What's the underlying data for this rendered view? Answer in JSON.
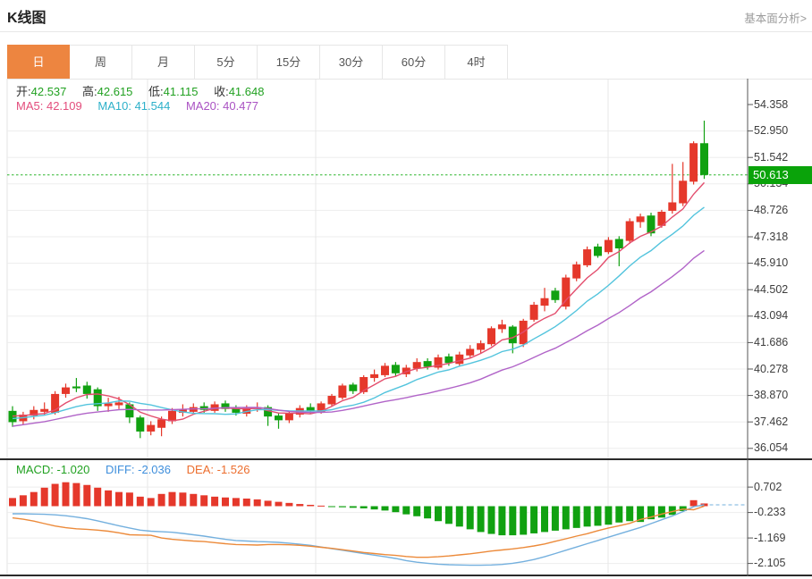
{
  "page": {
    "title": "K线图",
    "link": "基本面分析>"
  },
  "tabs": {
    "items": [
      "日",
      "周",
      "月",
      "5分",
      "15分",
      "30分",
      "60分",
      "4时"
    ],
    "selected": "日"
  },
  "quote_header": {
    "ohlc": [
      {
        "label": "开:",
        "value": "42.537"
      },
      {
        "label": "高:",
        "value": "42.615"
      },
      {
        "label": "低:",
        "value": "41.115"
      },
      {
        "label": "收:",
        "value": "41.648"
      }
    ],
    "mas": [
      {
        "label": "MA5:",
        "value": "42.109"
      },
      {
        "label": "MA10:",
        "value": "41.544"
      },
      {
        "label": "MA20:",
        "value": "40.477"
      }
    ]
  },
  "macd_header": [
    {
      "label": "MACD:",
      "value": "-1.020"
    },
    {
      "label": "DIFF:",
      "value": "-2.036"
    },
    {
      "label": "DEA:",
      "value": "-1.526"
    }
  ],
  "price_tag": {
    "value": "50.613"
  },
  "colors": {
    "up": "#e5382b",
    "down": "#11a111",
    "accent": "#ed8540",
    "ma5": "#e34d6d",
    "ma10": "#53c4dd",
    "ma20": "#b164c8",
    "diff_line": "#74b0de",
    "dea_line": "#ec8a3a",
    "price_line": "#2db52d",
    "tag_bg": "#0aa30a",
    "grid": "#ededed",
    "vgrid": "#e7e7e7",
    "axis": "#555",
    "dark_border": "#2b2b2b"
  },
  "chart_data": {
    "type": "candlestick+macd",
    "title": "K线图 daily candlestick with MACD",
    "main": {
      "y_axis_labels": [
        "54.358",
        "52.950",
        "51.542",
        "50.134",
        "48.726",
        "47.318",
        "45.910",
        "44.502",
        "43.094",
        "41.686",
        "40.278",
        "38.870",
        "37.462",
        "36.054"
      ],
      "ylim": [
        36.054,
        54.358
      ],
      "current_price": 50.613,
      "ma_windows": [
        5,
        10,
        20
      ],
      "vgrid_x": [
        165,
        353,
        680
      ],
      "candles_ohlc": [
        [
          38.05,
          38.3,
          37.2,
          37.45
        ],
        [
          37.5,
          38.0,
          37.3,
          37.85
        ],
        [
          37.8,
          38.3,
          37.6,
          38.1
        ],
        [
          38.0,
          38.5,
          37.85,
          38.15
        ],
        [
          37.95,
          39.1,
          37.85,
          38.95
        ],
        [
          38.95,
          39.5,
          38.75,
          39.3
        ],
        [
          39.35,
          39.8,
          39.05,
          39.25
        ],
        [
          39.4,
          39.6,
          38.7,
          38.95
        ],
        [
          39.2,
          39.3,
          38.05,
          38.3
        ],
        [
          38.3,
          38.75,
          38.0,
          38.45
        ],
        [
          38.35,
          38.8,
          38.15,
          38.5
        ],
        [
          38.4,
          38.5,
          37.4,
          37.7
        ],
        [
          37.7,
          37.8,
          36.6,
          36.95
        ],
        [
          36.95,
          37.5,
          36.75,
          37.3
        ],
        [
          37.15,
          37.75,
          36.7,
          37.6
        ],
        [
          37.5,
          38.2,
          37.35,
          38.05
        ],
        [
          37.95,
          38.4,
          37.75,
          38.15
        ],
        [
          38.0,
          38.45,
          37.9,
          38.25
        ],
        [
          38.3,
          38.5,
          37.95,
          38.1
        ],
        [
          38.05,
          38.55,
          37.95,
          38.4
        ],
        [
          38.45,
          38.6,
          38.0,
          38.15
        ],
        [
          38.2,
          38.35,
          37.8,
          37.95
        ],
        [
          37.9,
          38.35,
          37.75,
          38.2
        ],
        [
          38.15,
          38.5,
          38.0,
          38.25
        ],
        [
          38.25,
          38.35,
          37.25,
          37.75
        ],
        [
          37.8,
          37.95,
          37.1,
          37.55
        ],
        [
          37.55,
          38.05,
          37.4,
          37.9
        ],
        [
          37.85,
          38.35,
          37.7,
          38.2
        ],
        [
          38.25,
          38.45,
          37.9,
          38.05
        ],
        [
          38.0,
          38.55,
          37.9,
          38.45
        ],
        [
          38.4,
          38.95,
          38.3,
          38.85
        ],
        [
          38.75,
          39.5,
          38.65,
          39.4
        ],
        [
          39.45,
          39.55,
          38.95,
          39.1
        ],
        [
          39.05,
          39.95,
          38.95,
          39.85
        ],
        [
          39.8,
          40.25,
          39.6,
          40.0
        ],
        [
          39.95,
          40.6,
          39.85,
          40.45
        ],
        [
          40.5,
          40.65,
          39.9,
          40.05
        ],
        [
          40.0,
          40.5,
          39.85,
          40.35
        ],
        [
          40.3,
          40.85,
          40.15,
          40.65
        ],
        [
          40.7,
          40.85,
          40.25,
          40.4
        ],
        [
          40.35,
          41.05,
          40.25,
          40.9
        ],
        [
          40.95,
          41.1,
          40.45,
          40.6
        ],
        [
          40.55,
          41.2,
          40.45,
          41.05
        ],
        [
          41.0,
          41.55,
          40.9,
          41.35
        ],
        [
          41.3,
          41.8,
          41.1,
          41.65
        ],
        [
          41.6,
          42.55,
          41.5,
          42.45
        ],
        [
          42.4,
          42.9,
          42.2,
          42.65
        ],
        [
          42.537,
          42.615,
          41.115,
          41.648
        ],
        [
          41.6,
          42.95,
          41.45,
          42.85
        ],
        [
          42.9,
          43.85,
          42.8,
          43.7
        ],
        [
          43.65,
          44.6,
          43.35,
          44.05
        ],
        [
          44.45,
          44.6,
          43.8,
          43.95
        ],
        [
          43.6,
          45.3,
          43.45,
          45.15
        ],
        [
          45.1,
          46.0,
          44.95,
          45.85
        ],
        [
          45.8,
          46.8,
          45.7,
          46.65
        ],
        [
          46.8,
          46.95,
          46.2,
          46.3
        ],
        [
          46.5,
          47.3,
          46.4,
          47.15
        ],
        [
          47.2,
          47.35,
          45.75,
          46.7
        ],
        [
          47.1,
          48.3,
          46.95,
          48.15
        ],
        [
          48.1,
          48.55,
          47.8,
          48.4
        ],
        [
          48.45,
          48.6,
          47.35,
          47.5
        ],
        [
          47.9,
          48.75,
          47.8,
          48.65
        ],
        [
          48.7,
          51.2,
          48.55,
          49.15
        ],
        [
          49.1,
          51.3,
          48.95,
          50.3
        ],
        [
          50.25,
          52.4,
          50.1,
          52.3
        ],
        [
          52.3,
          53.5,
          50.4,
          50.61
        ]
      ]
    },
    "macd": {
      "y_axis_labels": [
        "0.702",
        "-0.233",
        "-1.169",
        "-2.105"
      ],
      "hist": [
        0.3,
        0.4,
        0.52,
        0.68,
        0.82,
        0.88,
        0.85,
        0.78,
        0.68,
        0.58,
        0.52,
        0.5,
        0.35,
        0.3,
        0.45,
        0.52,
        0.5,
        0.45,
        0.4,
        0.35,
        0.32,
        0.3,
        0.28,
        0.25,
        0.2,
        0.16,
        0.12,
        0.08,
        0.05,
        0.02,
        -0.02,
        -0.04,
        -0.06,
        -0.08,
        -0.12,
        -0.16,
        -0.22,
        -0.3,
        -0.37,
        -0.45,
        -0.55,
        -0.65,
        -0.75,
        -0.85,
        -0.95,
        -1.02,
        -1.07,
        -1.07,
        -1.05,
        -1.0,
        -0.95,
        -0.9,
        -0.85,
        -0.8,
        -0.75,
        -0.72,
        -0.68,
        -0.6,
        -0.55,
        -0.58,
        -0.48,
        -0.42,
        -0.32,
        -0.18,
        0.22,
        0.1
      ],
      "diff": [
        -0.28,
        -0.28,
        -0.29,
        -0.3,
        -0.32,
        -0.35,
        -0.4,
        -0.46,
        -0.54,
        -0.63,
        -0.72,
        -0.8,
        -0.88,
        -0.92,
        -0.94,
        -0.96,
        -1.0,
        -1.05,
        -1.1,
        -1.16,
        -1.22,
        -1.26,
        -1.28,
        -1.3,
        -1.31,
        -1.33,
        -1.36,
        -1.4,
        -1.44,
        -1.5,
        -1.56,
        -1.62,
        -1.68,
        -1.74,
        -1.8,
        -1.86,
        -1.92,
        -2.0,
        -2.06,
        -2.1,
        -2.13,
        -2.15,
        -2.16,
        -2.17,
        -2.17,
        -2.16,
        -2.14,
        -2.1,
        -2.04,
        -1.96,
        -1.86,
        -1.74,
        -1.62,
        -1.5,
        -1.38,
        -1.26,
        -1.14,
        -1.02,
        -0.9,
        -0.78,
        -0.64,
        -0.5,
        -0.36,
        -0.2,
        -0.02,
        0.05
      ],
      "dea": [
        -0.43,
        -0.48,
        -0.55,
        -0.64,
        -0.73,
        -0.79,
        -0.83,
        -0.85,
        -0.88,
        -0.92,
        -0.98,
        -1.05,
        -1.06,
        -1.07,
        -1.17,
        -1.22,
        -1.25,
        -1.28,
        -1.3,
        -1.34,
        -1.38,
        -1.41,
        -1.42,
        -1.43,
        -1.41,
        -1.41,
        -1.42,
        -1.44,
        -1.47,
        -1.51,
        -1.55,
        -1.6,
        -1.65,
        -1.7,
        -1.74,
        -1.78,
        -1.81,
        -1.85,
        -1.88,
        -1.88,
        -1.86,
        -1.83,
        -1.79,
        -1.75,
        -1.7,
        -1.65,
        -1.61,
        -1.57,
        -1.52,
        -1.46,
        -1.39,
        -1.29,
        -1.2,
        -1.1,
        -1.01,
        -0.9,
        -0.8,
        -0.72,
        -0.63,
        -0.49,
        -0.4,
        -0.29,
        -0.2,
        -0.11,
        -0.13,
        0.0
      ]
    }
  }
}
